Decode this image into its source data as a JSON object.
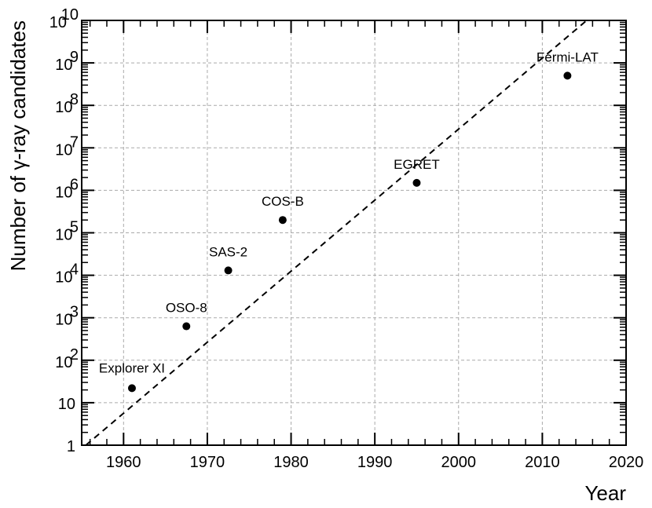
{
  "chart_data": {
    "type": "scatter",
    "xlabel": "Year",
    "ylabel": "Number of γ-ray candidates",
    "xlim": [
      1955,
      2020
    ],
    "ylim": [
      1,
      10000000000
    ],
    "yscale": "log",
    "grid": true,
    "x_ticks": [
      {
        "value": 1960,
        "label": "1960"
      },
      {
        "value": 1970,
        "label": "1970"
      },
      {
        "value": 1980,
        "label": "1980"
      },
      {
        "value": 1990,
        "label": "1990"
      },
      {
        "value": 2000,
        "label": "2000"
      },
      {
        "value": 2010,
        "label": "2010"
      },
      {
        "value": 2020,
        "label": "2020"
      }
    ],
    "y_ticks": [
      {
        "value": 1,
        "base": "1",
        "exp": ""
      },
      {
        "value": 10,
        "base": "10",
        "exp": ""
      },
      {
        "value": 100,
        "base": "10",
        "exp": "2"
      },
      {
        "value": 1000,
        "base": "10",
        "exp": "3"
      },
      {
        "value": 10000,
        "base": "10",
        "exp": "4"
      },
      {
        "value": 100000,
        "base": "10",
        "exp": "5"
      },
      {
        "value": 1000000,
        "base": "10",
        "exp": "6"
      },
      {
        "value": 10000000,
        "base": "10",
        "exp": "7"
      },
      {
        "value": 100000000,
        "base": "10",
        "exp": "8"
      },
      {
        "value": 1000000000,
        "base": "10",
        "exp": "9"
      },
      {
        "value": 10000000000,
        "base": "10",
        "exp": "10"
      }
    ],
    "points": [
      {
        "label": "Explorer XI",
        "x": 1961.0,
        "y": 22
      },
      {
        "label": "OSO-8",
        "x": 1967.5,
        "y": 630
      },
      {
        "label": "SAS-2",
        "x": 1972.5,
        "y": 13000
      },
      {
        "label": "COS-B",
        "x": 1979.0,
        "y": 200000
      },
      {
        "label": "EGRET",
        "x": 1995.0,
        "y": 1500000
      },
      {
        "label": "Fermi-LAT",
        "x": 2013.0,
        "y": 500000000
      }
    ],
    "trend_line": {
      "style": "dashed",
      "x": [
        1955.5,
        2015.3
      ],
      "y": [
        1,
        10000000000
      ]
    }
  }
}
